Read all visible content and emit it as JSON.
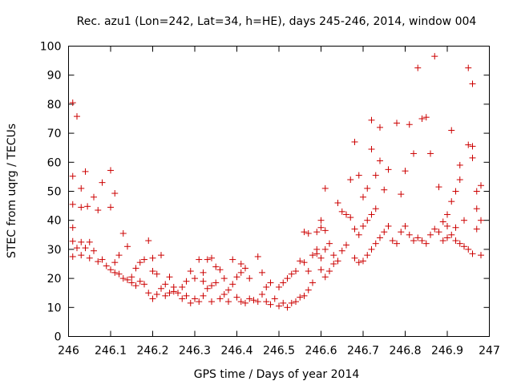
{
  "chart_data": {
    "type": "scatter",
    "title": "Rec. azu1 (Lon=242, Lat=34, h=HE), days 245-246, 2014, window 004",
    "xlabel": "GPS time / Days of year 2014",
    "ylabel": "STEC from uqrg / TECUs",
    "xlim": [
      246,
      247
    ],
    "ylim": [
      0,
      100
    ],
    "x_ticks": [
      246,
      246.1,
      246.2,
      246.3,
      246.4,
      246.5,
      246.6,
      246.7,
      246.8,
      246.9,
      247
    ],
    "x_tick_labels": [
      "246",
      "246.1",
      "246.2",
      "246.3",
      "246.4",
      "246.5",
      "246.6",
      "246.7",
      "246.8",
      "246.9",
      "247"
    ],
    "y_ticks": [
      0,
      10,
      20,
      30,
      40,
      50,
      60,
      70,
      80,
      90,
      100
    ],
    "y_tick_labels": [
      "0",
      "10",
      "20",
      "30",
      "40",
      "50",
      "60",
      "70",
      "80",
      "90",
      "100"
    ],
    "marker": "plus",
    "color": "#cc0000",
    "grid": false,
    "legend": "none",
    "series": [
      {
        "points": [
          [
            246.01,
            80.5
          ],
          [
            246.02,
            75.8
          ],
          [
            246.01,
            55.2
          ],
          [
            246.03,
            51.0
          ],
          [
            246.04,
            56.8
          ],
          [
            246.01,
            45.5
          ],
          [
            246.03,
            44.5
          ],
          [
            246.045,
            44.8
          ],
          [
            246.06,
            48.0
          ],
          [
            246.07,
            43.5
          ],
          [
            246.08,
            53.0
          ],
          [
            246.1,
            57.2
          ],
          [
            246.1,
            44.5
          ],
          [
            246.11,
            49.3
          ],
          [
            246.01,
            37.5
          ],
          [
            246.01,
            32.8
          ],
          [
            246.03,
            32.5
          ],
          [
            246.05,
            32.5
          ],
          [
            246.02,
            30.5
          ],
          [
            246.04,
            30.5
          ],
          [
            246.06,
            29.5
          ],
          [
            246.01,
            27.5
          ],
          [
            246.03,
            28.0
          ],
          [
            246.05,
            27.0
          ],
          [
            246.07,
            25.8
          ],
          [
            246.08,
            26.5
          ],
          [
            246.09,
            24.3
          ],
          [
            246.1,
            23.0
          ],
          [
            246.11,
            25.5
          ],
          [
            246.12,
            28.0
          ],
          [
            246.13,
            35.5
          ],
          [
            246.14,
            31.0
          ],
          [
            246.11,
            22.0
          ],
          [
            246.12,
            21.5
          ],
          [
            246.13,
            20.0
          ],
          [
            246.14,
            19.5
          ],
          [
            246.15,
            20.5
          ],
          [
            246.16,
            23.5
          ],
          [
            246.17,
            25.5
          ],
          [
            246.18,
            26.5
          ],
          [
            246.19,
            33.0
          ],
          [
            246.2,
            27.0
          ],
          [
            246.15,
            18.5
          ],
          [
            246.16,
            17.5
          ],
          [
            246.17,
            19.0
          ],
          [
            246.18,
            18.0
          ],
          [
            246.19,
            15.0
          ],
          [
            246.2,
            13.0
          ],
          [
            246.21,
            14.5
          ],
          [
            246.22,
            16.5
          ],
          [
            246.23,
            18.0
          ],
          [
            246.24,
            20.5
          ],
          [
            246.25,
            17.0
          ],
          [
            246.21,
            21.5
          ],
          [
            246.22,
            28.0
          ],
          [
            246.2,
            22.5
          ],
          [
            246.23,
            14.0
          ],
          [
            246.24,
            15.0
          ],
          [
            246.25,
            15.5
          ],
          [
            246.26,
            15.0
          ],
          [
            246.27,
            17.0
          ],
          [
            246.28,
            19.0
          ],
          [
            246.29,
            22.5
          ],
          [
            246.3,
            20.0
          ],
          [
            246.31,
            26.5
          ],
          [
            246.32,
            22.0
          ],
          [
            246.27,
            13.0
          ],
          [
            246.28,
            14.0
          ],
          [
            246.29,
            11.5
          ],
          [
            246.3,
            13.0
          ],
          [
            246.31,
            12.0
          ],
          [
            246.32,
            14.0
          ],
          [
            246.33,
            16.5
          ],
          [
            246.34,
            17.5
          ],
          [
            246.35,
            18.5
          ],
          [
            246.36,
            23.0
          ],
          [
            246.37,
            20.0
          ],
          [
            246.33,
            26.5
          ],
          [
            246.34,
            27.0
          ],
          [
            246.35,
            24.0
          ],
          [
            246.32,
            19.0
          ],
          [
            246.34,
            12.0
          ],
          [
            246.36,
            13.0
          ],
          [
            246.38,
            12.0
          ],
          [
            246.37,
            14.5
          ],
          [
            246.38,
            16.0
          ],
          [
            246.39,
            18.0
          ],
          [
            246.4,
            20.5
          ],
          [
            246.41,
            22.0
          ],
          [
            246.42,
            23.5
          ],
          [
            246.43,
            20.0
          ],
          [
            246.39,
            26.5
          ],
          [
            246.41,
            25.0
          ],
          [
            246.4,
            13.5
          ],
          [
            246.41,
            12.0
          ],
          [
            246.42,
            11.5
          ],
          [
            246.43,
            13.0
          ],
          [
            246.44,
            12.5
          ],
          [
            246.45,
            12.0
          ],
          [
            246.46,
            14.5
          ],
          [
            246.47,
            17.0
          ],
          [
            246.48,
            18.5
          ],
          [
            246.45,
            27.5
          ],
          [
            246.46,
            22.0
          ],
          [
            246.47,
            12.0
          ],
          [
            246.48,
            11.0
          ],
          [
            246.49,
            13.0
          ],
          [
            246.5,
            10.5
          ],
          [
            246.51,
            11.5
          ],
          [
            246.52,
            10.0
          ],
          [
            246.53,
            11.5
          ],
          [
            246.54,
            12.0
          ],
          [
            246.55,
            13.5
          ],
          [
            246.56,
            14.0
          ],
          [
            246.57,
            16.0
          ],
          [
            246.58,
            18.5
          ],
          [
            246.5,
            17.0
          ],
          [
            246.51,
            18.5
          ],
          [
            246.52,
            20.0
          ],
          [
            246.53,
            21.5
          ],
          [
            246.54,
            22.5
          ],
          [
            246.55,
            26.0
          ],
          [
            246.56,
            25.5
          ],
          [
            246.57,
            22.5
          ],
          [
            246.58,
            28.0
          ],
          [
            246.59,
            28.5
          ],
          [
            246.56,
            36.0
          ],
          [
            246.57,
            35.5
          ],
          [
            246.59,
            36.0
          ],
          [
            246.6,
            37.5
          ],
          [
            246.61,
            36.5
          ],
          [
            246.6,
            40.0
          ],
          [
            246.61,
            51.0
          ],
          [
            246.59,
            30.0
          ],
          [
            246.6,
            27.0
          ],
          [
            246.61,
            30.0
          ],
          [
            246.62,
            32.0
          ],
          [
            246.63,
            28.0
          ],
          [
            246.64,
            26.0
          ],
          [
            246.65,
            29.5
          ],
          [
            246.66,
            31.5
          ],
          [
            246.6,
            23.0
          ],
          [
            246.61,
            20.5
          ],
          [
            246.62,
            22.5
          ],
          [
            246.63,
            25.0
          ],
          [
            246.64,
            46.0
          ],
          [
            246.65,
            43.0
          ],
          [
            246.66,
            42.0
          ],
          [
            246.67,
            41.0
          ],
          [
            246.67,
            54.0
          ],
          [
            246.68,
            67.0
          ],
          [
            246.69,
            55.5
          ],
          [
            246.7,
            48.0
          ],
          [
            246.71,
            51.0
          ],
          [
            246.72,
            74.5
          ],
          [
            246.72,
            64.5
          ],
          [
            246.73,
            55.5
          ],
          [
            246.74,
            60.5
          ],
          [
            246.74,
            72.0
          ],
          [
            246.68,
            37.0
          ],
          [
            246.69,
            35.0
          ],
          [
            246.7,
            38.0
          ],
          [
            246.71,
            40.0
          ],
          [
            246.72,
            42.0
          ],
          [
            246.73,
            44.0
          ],
          [
            246.68,
            27.0
          ],
          [
            246.69,
            25.5
          ],
          [
            246.7,
            26.0
          ],
          [
            246.71,
            28.0
          ],
          [
            246.72,
            30.0
          ],
          [
            246.73,
            32.0
          ],
          [
            246.74,
            34.0
          ],
          [
            246.75,
            36.0
          ],
          [
            246.76,
            38.0
          ],
          [
            246.75,
            50.5
          ],
          [
            246.76,
            57.5
          ],
          [
            246.78,
            73.5
          ],
          [
            246.79,
            49.0
          ],
          [
            246.8,
            57.0
          ],
          [
            246.81,
            73.0
          ],
          [
            246.82,
            63.0
          ],
          [
            246.83,
            92.5
          ],
          [
            246.84,
            75.0
          ],
          [
            246.85,
            75.5
          ],
          [
            246.86,
            63.0
          ],
          [
            246.87,
            96.5
          ],
          [
            246.88,
            51.5
          ],
          [
            246.77,
            33.0
          ],
          [
            246.78,
            32.0
          ],
          [
            246.79,
            36.0
          ],
          [
            246.8,
            38.0
          ],
          [
            246.81,
            35.0
          ],
          [
            246.82,
            33.0
          ],
          [
            246.83,
            34.0
          ],
          [
            246.84,
            33.0
          ],
          [
            246.85,
            32.0
          ],
          [
            246.86,
            35.0
          ],
          [
            246.87,
            37.0
          ],
          [
            246.88,
            36.0
          ],
          [
            246.89,
            39.5
          ],
          [
            246.9,
            42.0
          ],
          [
            246.91,
            46.5
          ],
          [
            246.92,
            50.0
          ],
          [
            246.93,
            54.0
          ],
          [
            246.93,
            59.0
          ],
          [
            246.91,
            71.0
          ],
          [
            246.95,
            92.5
          ],
          [
            246.96,
            87.0
          ],
          [
            246.95,
            66.0
          ],
          [
            246.96,
            65.5
          ],
          [
            246.96,
            61.5
          ],
          [
            246.97,
            50.0
          ],
          [
            246.98,
            52.0
          ],
          [
            246.98,
            40.0
          ],
          [
            246.97,
            44.0
          ],
          [
            246.89,
            33.0
          ],
          [
            246.9,
            34.0
          ],
          [
            246.91,
            35.0
          ],
          [
            246.92,
            33.0
          ],
          [
            246.93,
            32.0
          ],
          [
            246.94,
            31.0
          ],
          [
            246.95,
            30.0
          ],
          [
            246.96,
            28.5
          ],
          [
            246.98,
            28.0
          ],
          [
            246.9,
            38.0
          ],
          [
            246.92,
            37.5
          ],
          [
            246.94,
            40.0
          ],
          [
            246.97,
            37.0
          ]
        ]
      }
    ]
  }
}
